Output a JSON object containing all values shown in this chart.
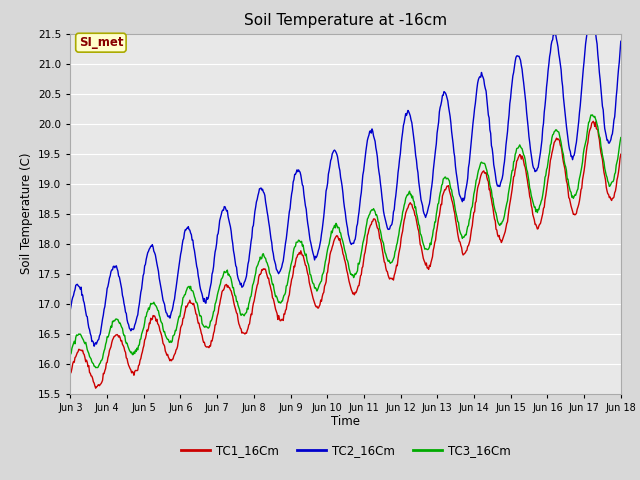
{
  "title": "Soil Temperature at -16cm",
  "xlabel": "Time",
  "ylabel": "Soil Temperature (C)",
  "ylim": [
    15.5,
    21.5
  ],
  "xlim_days": [
    3,
    18
  ],
  "plot_bg_color": "#e8e8e8",
  "fig_bg_color": "#d8d8d8",
  "grid_color": "#ffffff",
  "colors": {
    "TC1": "#cc0000",
    "TC2": "#0000cc",
    "TC3": "#00aa00"
  },
  "legend_labels": [
    "TC1_16Cm",
    "TC2_16Cm",
    "TC3_16Cm"
  ],
  "annotation_text": "SI_met",
  "annotation_bg": "#ffffcc",
  "annotation_border": "#aaaa00",
  "x_tick_labels": [
    "Jun 3",
    "Jun 4",
    "Jun 5",
    "Jun 6",
    "Jun 7",
    "Jun 8",
    "Jun 9",
    "Jun 10",
    "Jun 11",
    "Jun 12",
    "Jun 13",
    "Jun 14",
    "Jun 15",
    "Jun 16",
    "Jun 17",
    "Jun 18"
  ],
  "x_tick_positions": [
    3,
    4,
    5,
    6,
    7,
    8,
    9,
    10,
    11,
    12,
    13,
    14,
    15,
    16,
    17,
    18
  ],
  "yticks": [
    15.5,
    16.0,
    16.5,
    17.0,
    17.5,
    18.0,
    18.5,
    19.0,
    19.5,
    20.0,
    20.5,
    21.0,
    21.5
  ],
  "trend_TC1": [
    15.8,
    19.5
  ],
  "trend_TC2": [
    16.7,
    20.9
  ],
  "trend_TC3": [
    16.1,
    19.7
  ],
  "osc_base_TC1": 0.35,
  "osc_base_TC2": 0.55,
  "osc_base_TC3": 0.32,
  "osc_growth_TC1": 0.025,
  "osc_growth_TC2": 0.04,
  "osc_growth_TC3": 0.022,
  "period_days": 1.0,
  "samples_per_day": 48,
  "phase_TC1": 0.0,
  "phase_TC2": 0.4,
  "phase_TC3": 0.15
}
